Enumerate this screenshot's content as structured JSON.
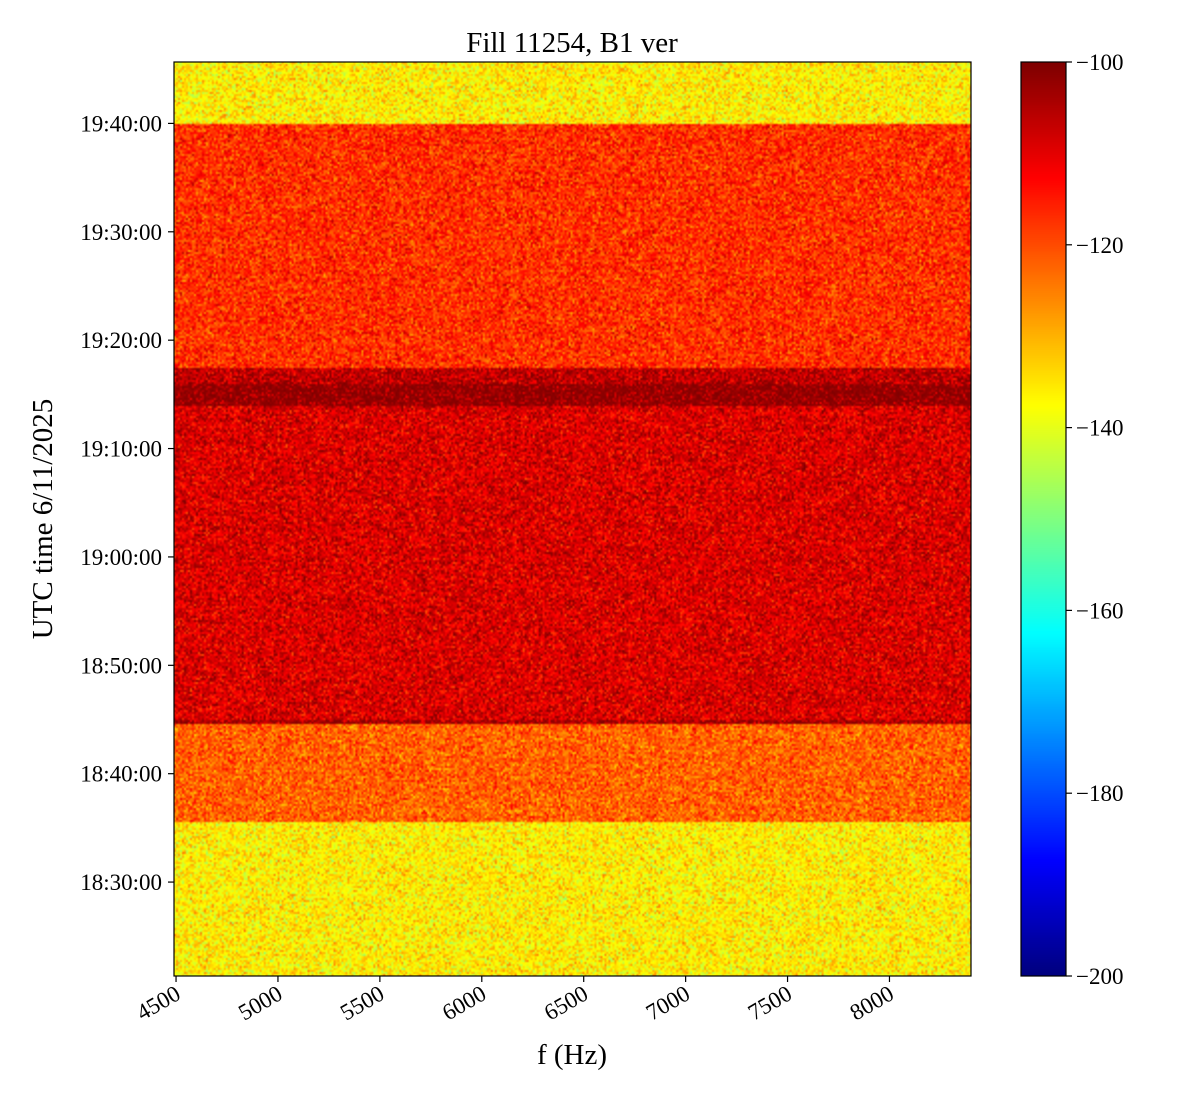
{
  "chart_data": {
    "type": "heatmap",
    "title": "Fill 11254, B1 ver",
    "xlabel": "f (Hz)",
    "ylabel": "UTC time 6/11/2025",
    "x_ticks": [
      {
        "value": 4500,
        "label": "4500"
      },
      {
        "value": 5000,
        "label": "5000"
      },
      {
        "value": 5500,
        "label": "5500"
      },
      {
        "value": 6000,
        "label": "6000"
      },
      {
        "value": 6500,
        "label": "6500"
      },
      {
        "value": 7000,
        "label": "7000"
      },
      {
        "value": 7500,
        "label": "7500"
      },
      {
        "value": 8000,
        "label": "8000"
      }
    ],
    "y_ticks": [
      {
        "value": "18:30:00",
        "label": "18:30:00"
      },
      {
        "value": "18:40:00",
        "label": "18:40:00"
      },
      {
        "value": "18:50:00",
        "label": "18:50:00"
      },
      {
        "value": "19:00:00",
        "label": "19:00:00"
      },
      {
        "value": "19:10:00",
        "label": "19:10:00"
      },
      {
        "value": "19:20:00",
        "label": "19:20:00"
      },
      {
        "value": "19:30:00",
        "label": "19:30:00"
      },
      {
        "value": "19:40:00",
        "label": "19:40:00"
      }
    ],
    "xlim": [
      4490,
      8400
    ],
    "ylim": [
      "18:21:20",
      "19:45:40"
    ],
    "colormap": "jet",
    "colorbar": {
      "range": [
        -200,
        -100
      ],
      "ticks": [
        {
          "value": -100,
          "label": "−100"
        },
        {
          "value": -120,
          "label": "−120"
        },
        {
          "value": -140,
          "label": "−140"
        },
        {
          "value": -160,
          "label": "−160"
        },
        {
          "value": -180,
          "label": "−180"
        },
        {
          "value": -200,
          "label": "−200"
        }
      ]
    },
    "time_bands": [
      {
        "start": "18:21:20",
        "end": "18:35:30",
        "level_dB": -136
      },
      {
        "start": "18:35:30",
        "end": "18:44:30",
        "level_dB": -122
      },
      {
        "start": "18:44:30",
        "end": "18:45:00",
        "level_dB": -104
      },
      {
        "start": "18:45:00",
        "end": "19:14:00",
        "level_dB": -109
      },
      {
        "start": "19:14:00",
        "end": "19:16:00",
        "level_dB": -101
      },
      {
        "start": "19:16:00",
        "end": "19:17:30",
        "level_dB": -106
      },
      {
        "start": "19:17:30",
        "end": "19:40:00",
        "level_dB": -117
      },
      {
        "start": "19:40:00",
        "end": "19:45:40",
        "level_dB": -136
      }
    ],
    "grid": false
  }
}
